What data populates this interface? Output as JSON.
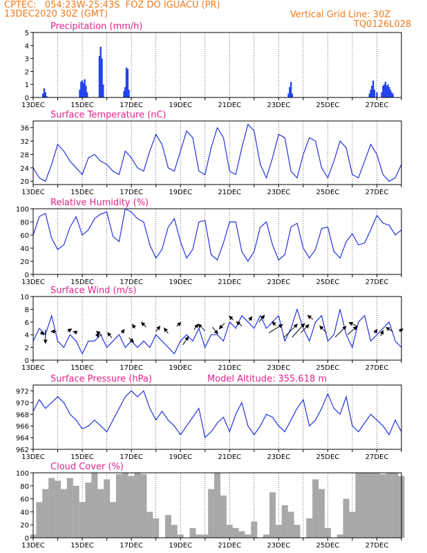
{
  "header": {
    "line1": "CPTEC:   054:23W-25:43S  FOZ DO IGUACU (PR)",
    "line2": "13DEC2020 30Z (GMT)",
    "grid_note": "Vertical Grid Line: 30Z",
    "code": "TQ0126L028"
  },
  "colors": {
    "header": "#f07a1a",
    "title": "#e0208a",
    "line": "#2233dd",
    "bar": "#2244ee",
    "cloud": "#a8a8a8",
    "arrow": "#000000"
  },
  "chart_data": [
    {
      "id": "precip",
      "type": "bar",
      "title": "Precipitation (mm/h)",
      "xticks": [
        "13DEC",
        "15DEC",
        "17DEC",
        "19DEC",
        "21DEC",
        "23DEC",
        "25DEC",
        "27DEC"
      ],
      "ylim": [
        0,
        5
      ],
      "yticks": [
        0,
        1,
        2,
        3,
        4,
        5
      ],
      "x": [
        13.4,
        13.45,
        13.5,
        13.55,
        14.9,
        14.95,
        15.0,
        15.05,
        15.1,
        15.15,
        15.2,
        15.7,
        15.75,
        15.8,
        15.85,
        16.7,
        16.75,
        16.8,
        16.85,
        16.9,
        23.4,
        23.45,
        23.5,
        23.55,
        26.7,
        26.75,
        26.8,
        26.85,
        26.9,
        27.0,
        27.2,
        27.25,
        27.3,
        27.35,
        27.4,
        27.45,
        27.5,
        27.55,
        27.6,
        27.65
      ],
      "values": [
        0.3,
        0.7,
        0.4,
        0.1,
        0.6,
        1.2,
        1.3,
        1.1,
        1.4,
        0.9,
        0.4,
        3.2,
        3.9,
        3.0,
        1.0,
        0.5,
        0.8,
        2.3,
        2.2,
        0.6,
        0.3,
        0.8,
        1.2,
        0.3,
        0.3,
        0.6,
        0.9,
        1.3,
        0.6,
        0.4,
        0.4,
        0.9,
        1.0,
        1.2,
        0.9,
        1.0,
        0.8,
        0.6,
        0.4,
        0.3
      ]
    },
    {
      "id": "temp",
      "type": "line",
      "title": "Surface Temperature (nC)",
      "xticks": [
        "13DEC",
        "15DEC",
        "17DEC",
        "19DEC",
        "21DEC",
        "23DEC",
        "25DEC",
        "27DEC"
      ],
      "ylim": [
        19,
        38
      ],
      "yticks": [
        20,
        24,
        28,
        32,
        36
      ],
      "x": [
        13.0,
        13.25,
        13.5,
        13.75,
        14.0,
        14.25,
        14.5,
        14.75,
        15.0,
        15.25,
        15.5,
        15.75,
        16.0,
        16.25,
        16.5,
        16.75,
        17.0,
        17.25,
        17.5,
        17.75,
        18.0,
        18.25,
        18.5,
        18.75,
        19.0,
        19.25,
        19.5,
        19.75,
        20.0,
        20.25,
        20.5,
        20.75,
        21.0,
        21.25,
        21.5,
        21.75,
        22.0,
        22.25,
        22.5,
        22.75,
        23.0,
        23.25,
        23.5,
        23.75,
        24.0,
        24.25,
        24.5,
        24.75,
        25.0,
        25.25,
        25.5,
        25.75,
        26.0,
        26.25,
        26.5,
        26.75,
        27.0,
        27.25,
        27.5,
        27.75,
        28.0
      ],
      "y": [
        24,
        21,
        20,
        25,
        31,
        29,
        26,
        24,
        22,
        27,
        28,
        26,
        25,
        23,
        22,
        29,
        27,
        24,
        23,
        29,
        34,
        31,
        24,
        23,
        29,
        35,
        33,
        23,
        22,
        30,
        36,
        33,
        23,
        22,
        30,
        37,
        35,
        25,
        21,
        27,
        34,
        33,
        23,
        21,
        28,
        33,
        32,
        24,
        21,
        26,
        32,
        30,
        22,
        21,
        26,
        31,
        28,
        22,
        20,
        21,
        25
      ]
    },
    {
      "id": "rh",
      "type": "line",
      "title": "Relative Humidity (%)",
      "xticks": [
        "13DEC",
        "15DEC",
        "17DEC",
        "19DEC",
        "21DEC",
        "23DEC",
        "25DEC",
        "27DEC"
      ],
      "ylim": [
        0,
        100
      ],
      "yticks": [
        0,
        20,
        40,
        60,
        80,
        100
      ],
      "x": [
        13.0,
        13.25,
        13.5,
        13.75,
        14.0,
        14.25,
        14.5,
        14.75,
        15.0,
        15.25,
        15.5,
        15.75,
        16.0,
        16.25,
        16.5,
        16.75,
        17.0,
        17.25,
        17.5,
        17.75,
        18.0,
        18.25,
        18.5,
        18.75,
        19.0,
        19.25,
        19.5,
        19.75,
        20.0,
        20.25,
        20.5,
        20.75,
        21.0,
        21.25,
        21.5,
        21.75,
        22.0,
        22.25,
        22.5,
        22.75,
        23.0,
        23.25,
        23.5,
        23.75,
        24.0,
        24.25,
        24.5,
        24.75,
        25.0,
        25.25,
        25.5,
        25.75,
        26.0,
        26.25,
        26.5,
        26.75,
        27.0,
        27.25,
        27.5,
        27.75,
        28.0
      ],
      "y": [
        60,
        88,
        93,
        55,
        38,
        45,
        72,
        88,
        60,
        68,
        85,
        92,
        95,
        58,
        50,
        100,
        95,
        85,
        80,
        45,
        25,
        38,
        72,
        85,
        50,
        25,
        38,
        80,
        82,
        30,
        22,
        48,
        80,
        80,
        35,
        20,
        35,
        72,
        80,
        45,
        22,
        30,
        72,
        78,
        40,
        25,
        38,
        70,
        72,
        35,
        25,
        50,
        62,
        45,
        48,
        68,
        90,
        78,
        75,
        60,
        68
      ]
    },
    {
      "id": "wind",
      "type": "line",
      "title": "Surface Wind (m/s)",
      "xticks": [
        "13DEC",
        "15DEC",
        "17DEC",
        "19DEC",
        "21DEC",
        "23DEC",
        "25DEC",
        "27DEC"
      ],
      "ylim": [
        0,
        10
      ],
      "yticks": [
        0,
        2,
        4,
        6,
        8,
        10
      ],
      "x": [
        13.0,
        13.25,
        13.5,
        13.75,
        14.0,
        14.25,
        14.5,
        14.75,
        15.0,
        15.25,
        15.5,
        15.75,
        16.0,
        16.25,
        16.5,
        16.75,
        17.0,
        17.25,
        17.5,
        17.75,
        18.0,
        18.25,
        18.5,
        18.75,
        19.0,
        19.25,
        19.5,
        19.75,
        20.0,
        20.25,
        20.5,
        20.75,
        21.0,
        21.25,
        21.5,
        21.75,
        22.0,
        22.25,
        22.5,
        22.75,
        23.0,
        23.25,
        23.5,
        23.75,
        24.0,
        24.25,
        24.5,
        24.75,
        25.0,
        25.25,
        25.5,
        25.75,
        26.0,
        26.25,
        26.5,
        26.75,
        27.0,
        27.25,
        27.5,
        27.75,
        28.0
      ],
      "y": [
        3,
        5,
        4,
        7,
        3,
        2,
        4,
        3,
        1,
        3,
        3,
        4,
        2,
        3,
        4,
        2,
        3,
        2,
        3,
        2,
        4,
        3,
        2,
        1,
        3,
        4,
        3,
        5,
        2,
        4,
        4,
        3,
        6,
        5,
        7,
        6,
        5,
        7,
        5,
        6,
        7,
        3,
        5,
        8,
        5,
        3,
        6,
        7,
        3,
        4,
        8,
        4,
        2,
        6,
        7,
        3,
        4,
        5,
        6,
        3,
        2
      ],
      "arrows": [
        [
          13.3,
          4.5,
          0.25,
          -0.25
        ],
        [
          13.5,
          4.8,
          0.0,
          -1.0
        ],
        [
          13.95,
          4.5,
          -0.4,
          0.0
        ],
        [
          14.4,
          4.5,
          0.3,
          0.2
        ],
        [
          14.8,
          4.3,
          -0.3,
          0.1
        ],
        [
          15.6,
          4.2,
          0.1,
          -0.3
        ],
        [
          15.8,
          3.9,
          -0.4,
          0.3
        ],
        [
          16.2,
          3.5,
          -0.3,
          0.4
        ],
        [
          16.6,
          4.2,
          0.2,
          0.3
        ],
        [
          16.9,
          3.5,
          0.35,
          -0.3
        ],
        [
          17.15,
          5.0,
          -0.2,
          0.3
        ],
        [
          17.6,
          5.2,
          -0.35,
          0.35
        ],
        [
          18.0,
          4.5,
          0.3,
          0.4
        ],
        [
          18.5,
          4.2,
          -0.3,
          0.4
        ],
        [
          18.85,
          5.3,
          0.3,
          0.3
        ],
        [
          19.1,
          2.4,
          0.4,
          0.6
        ],
        [
          19.55,
          4.8,
          0.3,
          0.4
        ],
        [
          20.0,
          4.6,
          -0.5,
          0.5
        ],
        [
          20.3,
          5.2,
          0.4,
          -0.5
        ],
        [
          20.8,
          5.8,
          -0.4,
          -0.4
        ],
        [
          21.15,
          6.3,
          -0.3,
          0.3
        ],
        [
          21.5,
          5.4,
          -0.4,
          0.3
        ],
        [
          21.8,
          6.2,
          0.2,
          0.3
        ],
        [
          22.2,
          6.0,
          0.4,
          0.5
        ],
        [
          22.6,
          4.3,
          1.0,
          0.6
        ],
        [
          22.9,
          5.4,
          -0.3,
          0.3
        ],
        [
          23.2,
          3.5,
          1.0,
          1.0
        ],
        [
          23.55,
          3.6,
          0.9,
          1.0
        ],
        [
          23.9,
          4.3,
          0.6,
          0.6
        ],
        [
          24.4,
          6.4,
          -0.4,
          0.3
        ],
        [
          24.95,
          4.3,
          -0.5,
          0.5
        ],
        [
          25.3,
          3.6,
          0.8,
          0.8
        ],
        [
          25.8,
          4.0,
          0.7,
          0.6
        ],
        [
          26.2,
          5.3,
          -0.6,
          0.3
        ],
        [
          26.9,
          4.2,
          0.2,
          0.3
        ],
        [
          27.15,
          3.8,
          0.2,
          0.4
        ],
        [
          27.65,
          4.5,
          -0.5,
          0.3
        ],
        [
          27.9,
          4.5,
          0.3,
          0.2
        ]
      ]
    },
    {
      "id": "pres",
      "type": "line",
      "title": "Surface Pressure (hPa)",
      "title_extra": "Model Altitude: 355.618 m",
      "xticks": [
        "13DEC",
        "15DEC",
        "17DEC",
        "19DEC",
        "21DEC",
        "23DEC",
        "25DEC",
        "27DEC"
      ],
      "ylim": [
        962,
        973
      ],
      "yticks": [
        962,
        964,
        966,
        968,
        970,
        972
      ],
      "x": [
        13.0,
        13.25,
        13.5,
        13.75,
        14.0,
        14.25,
        14.5,
        14.75,
        15.0,
        15.25,
        15.5,
        15.75,
        16.0,
        16.25,
        16.5,
        16.75,
        17.0,
        17.25,
        17.5,
        17.75,
        18.0,
        18.25,
        18.5,
        18.75,
        19.0,
        19.25,
        19.5,
        19.75,
        20.0,
        20.25,
        20.5,
        20.75,
        21.0,
        21.25,
        21.5,
        21.75,
        22.0,
        22.25,
        22.5,
        22.75,
        23.0,
        23.25,
        23.5,
        23.75,
        24.0,
        24.25,
        24.5,
        24.75,
        25.0,
        25.25,
        25.5,
        25.75,
        26.0,
        26.25,
        26.5,
        26.75,
        27.0,
        27.25,
        27.5,
        27.75,
        28.0
      ],
      "y": [
        968.5,
        970.5,
        969,
        970,
        971,
        970,
        968,
        967,
        965.5,
        966,
        967,
        966,
        965,
        967,
        969,
        971,
        972,
        971,
        972,
        969,
        967,
        968.5,
        967,
        966,
        964.5,
        966,
        967.5,
        969,
        964,
        965,
        966.5,
        967.5,
        965,
        968,
        970,
        966,
        964.5,
        966,
        968,
        967.5,
        966,
        965,
        967,
        969,
        970.5,
        966,
        967,
        969,
        971.5,
        969,
        968,
        971,
        966,
        965,
        966.5,
        968,
        967,
        966,
        964.5,
        967,
        965
      ]
    },
    {
      "id": "cloud",
      "type": "area",
      "title": "Cloud Cover (%)",
      "xticks": [
        "13DEC",
        "15DEC",
        "17DEC",
        "19DEC",
        "21DEC",
        "23DEC",
        "25DEC",
        "27DEC"
      ],
      "ylim": [
        0,
        100
      ],
      "yticks": [
        0,
        20,
        40,
        60,
        80,
        100
      ],
      "x": [
        13.0,
        13.25,
        13.5,
        13.75,
        14.0,
        14.25,
        14.5,
        14.75,
        15.0,
        15.25,
        15.5,
        15.75,
        16.0,
        16.25,
        16.5,
        16.75,
        17.0,
        17.25,
        17.5,
        17.75,
        18.0,
        18.25,
        18.5,
        18.75,
        19.0,
        19.25,
        19.5,
        19.75,
        20.0,
        20.25,
        20.5,
        20.75,
        21.0,
        21.25,
        21.5,
        21.75,
        22.0,
        22.25,
        22.5,
        22.75,
        23.0,
        23.25,
        23.5,
        23.75,
        24.0,
        24.25,
        24.5,
        24.75,
        25.0,
        25.25,
        25.5,
        25.75,
        26.0,
        26.25,
        26.5,
        26.75,
        27.0,
        27.25,
        27.5,
        27.75,
        28.0
      ],
      "values": [
        5,
        55,
        75,
        92,
        88,
        75,
        92,
        80,
        55,
        85,
        100,
        75,
        90,
        55,
        98,
        100,
        95,
        100,
        98,
        40,
        30,
        0,
        35,
        20,
        5,
        0,
        15,
        5,
        5,
        75,
        100,
        65,
        20,
        15,
        10,
        5,
        25,
        0,
        5,
        70,
        20,
        50,
        40,
        20,
        0,
        30,
        90,
        75,
        15,
        0,
        5,
        60,
        40,
        100,
        100,
        100,
        100,
        98,
        100,
        100,
        95
      ]
    }
  ]
}
